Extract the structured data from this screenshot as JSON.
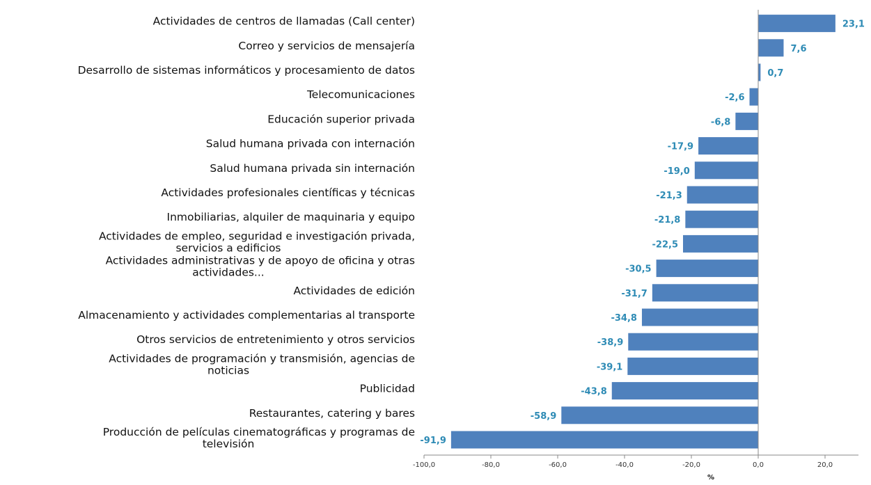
{
  "chart_data": {
    "type": "bar",
    "orientation": "horizontal",
    "categories": [
      "Actividades de centros de llamadas (Call center)",
      "Correo y servicios de mensajería",
      "Desarrollo de sistemas informáticos y procesamiento de datos",
      "Telecomunicaciones",
      "Educación superior privada",
      "Salud humana privada con internación",
      "Salud humana privada sin internación",
      "Actividades profesionales científicas y técnicas",
      "Inmobiliarias, alquiler de maquinaria y equipo",
      "Actividades de empleo, seguridad e investigación privada, servicios a edificios",
      "Actividades administrativas y de apoyo de oficina y otras actividades...",
      "Actividades de edición",
      "Almacenamiento y actividades complementarias al transporte",
      "Otros servicios de entretenimiento y otros servicios",
      "Actividades de programación y transmisión,  agencias de noticias",
      "Publicidad",
      "Restaurantes, catering y bares",
      "Producción de películas cinematográficas y programas de televisión"
    ],
    "category_lines": [
      [
        "Actividades de centros de llamadas (Call center)"
      ],
      [
        "Correo y servicios de mensajería"
      ],
      [
        "Desarrollo de sistemas informáticos y procesamiento de datos"
      ],
      [
        "Telecomunicaciones"
      ],
      [
        "Educación superior privada"
      ],
      [
        "Salud humana privada con internación"
      ],
      [
        "Salud humana privada sin internación"
      ],
      [
        "Actividades profesionales científicas y técnicas"
      ],
      [
        "Inmobiliarias, alquiler de maquinaria y equipo"
      ],
      [
        "Actividades de empleo, seguridad e investigación privada,",
        "servicios a edificios"
      ],
      [
        "Actividades administrativas y de apoyo de oficina y otras",
        "actividades..."
      ],
      [
        "Actividades de edición"
      ],
      [
        "Almacenamiento y actividades complementarias al transporte"
      ],
      [
        "Otros servicios de entretenimiento y otros servicios"
      ],
      [
        "Actividades de programación y transmisión,  agencias de",
        "noticias"
      ],
      [
        "Publicidad"
      ],
      [
        "Restaurantes, catering y bares"
      ],
      [
        "Producción de películas cinematográficas y programas de",
        "televisión"
      ]
    ],
    "values": [
      23.1,
      7.6,
      0.7,
      -2.6,
      -6.8,
      -17.9,
      -19.0,
      -21.3,
      -21.8,
      -22.5,
      -30.5,
      -31.7,
      -34.8,
      -38.9,
      -39.1,
      -43.8,
      -58.9,
      -91.9
    ],
    "value_labels": [
      "23,1",
      "7,6",
      "0,7",
      "-2,6",
      "-6,8",
      "-17,9",
      "-19,0",
      "-21,3",
      "-21,8",
      "-22,5",
      "-30,5",
      "-31,7",
      "-34,8",
      "-38,9",
      "-39,1",
      "-43,8",
      "-58,9",
      "-91,9"
    ],
    "xlim": [
      -100,
      30
    ],
    "xticks": [
      -100,
      -80,
      -60,
      -40,
      -20,
      0,
      20
    ],
    "xtick_labels": [
      "-100,0",
      "-80,0",
      "-60,0",
      "-40,0",
      "-20,0",
      "0,0",
      "20,0"
    ],
    "xlabel": "%",
    "ylabel": "",
    "title": "",
    "grid": false,
    "colors": {
      "bar": "#4f81bd",
      "data_label": "#2e8bb5",
      "axis": "#888888"
    }
  }
}
